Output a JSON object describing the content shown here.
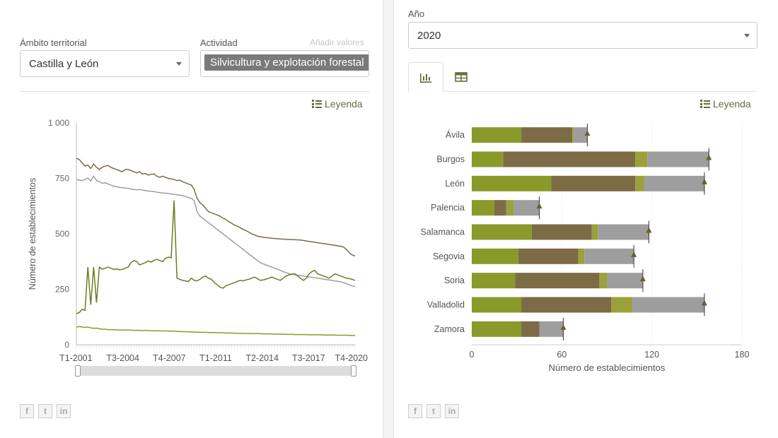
{
  "filters": {
    "territory_label": "Ámbito territorial",
    "territory_value": "Castilla y León",
    "activity_label": "Actividad",
    "add_values_label": "Añadir valores",
    "activity_tag": "Silvicultura y explotación forestal",
    "year_label": "Año",
    "year_value": "2020"
  },
  "legend_label": "Leyenda",
  "tabs": [
    {
      "icon": "bar-chart-icon",
      "active": true
    },
    {
      "icon": "table-icon",
      "active": false
    }
  ],
  "social": [
    "facebook-icon",
    "twitter-icon",
    "linkedin-icon"
  ],
  "colors": {
    "accent": "#6b6b3c",
    "series_1": "#8a9a2a",
    "series_2": "#7d6b46",
    "series_3": "#9aa13a",
    "series_4": "#9e9e9e",
    "total": "#6b5d2e"
  },
  "chart_data": [
    {
      "type": "line",
      "ylabel": "Número de establecimientos",
      "ylim": [
        0,
        1000
      ],
      "yticks": [
        "0",
        "250",
        "500",
        "750",
        "1 000"
      ],
      "xtick_labels": [
        "T1-2001",
        "T3-2004",
        "T4-2007",
        "T1-2011",
        "T2-2014",
        "T3-2017",
        "T4-2020"
      ],
      "grid": false,
      "series": [
        {
          "color": "#7d6b46",
          "values": [
            840,
            835,
            820,
            805,
            810,
            795,
            815,
            800,
            790,
            800,
            805,
            808,
            800,
            795,
            790,
            785,
            780,
            790,
            790,
            785,
            780,
            775,
            780,
            770,
            772,
            765,
            768,
            770,
            760,
            755,
            760,
            755,
            750,
            748,
            745,
            740,
            742,
            735,
            730,
            725,
            720,
            700,
            660,
            640,
            630,
            615,
            600,
            595,
            590,
            585,
            580,
            570,
            565,
            555,
            548,
            540,
            535,
            528,
            520,
            515,
            508,
            500,
            495,
            490,
            487,
            485,
            483,
            482,
            480,
            479,
            478,
            477,
            476,
            475,
            475,
            474,
            474,
            473,
            472,
            470,
            468,
            466,
            464,
            462,
            460,
            458,
            456,
            454,
            452,
            450,
            448,
            446,
            444,
            440,
            430,
            415,
            405,
            400
          ]
        },
        {
          "color": "#9e9e9e",
          "values": [
            745,
            742,
            740,
            745,
            752,
            738,
            760,
            740,
            735,
            728,
            730,
            725,
            720,
            715,
            712,
            710,
            708,
            706,
            705,
            702,
            700,
            698,
            700,
            697,
            695,
            693,
            692,
            690,
            688,
            686,
            684,
            683,
            682,
            680,
            678,
            676,
            674,
            672,
            668,
            664,
            660,
            650,
            600,
            580,
            570,
            560,
            550,
            540,
            530,
            520,
            510,
            500,
            490,
            480,
            470,
            460,
            450,
            440,
            430,
            420,
            410,
            400,
            390,
            380,
            370,
            365,
            360,
            355,
            350,
            345,
            340,
            335,
            330,
            325,
            320,
            318,
            316,
            314,
            312,
            310,
            308,
            306,
            304,
            302,
            300,
            298,
            296,
            294,
            292,
            290,
            288,
            286,
            284,
            280,
            275,
            270,
            265,
            262
          ]
        },
        {
          "color": "#6e7a22",
          "values": [
            140,
            145,
            160,
            155,
            350,
            180,
            350,
            190,
            350,
            340,
            345,
            350,
            345,
            340,
            342,
            338,
            340,
            345,
            350,
            370,
            380,
            375,
            360,
            365,
            370,
            378,
            372,
            380,
            385,
            380,
            375,
            390,
            395,
            392,
            650,
            300,
            295,
            290,
            288,
            285,
            300,
            290,
            288,
            295,
            305,
            310,
            300,
            295,
            280,
            270,
            260,
            255,
            265,
            270,
            275,
            280,
            285,
            290,
            288,
            292,
            295,
            300,
            305,
            298,
            290,
            292,
            296,
            300,
            305,
            300,
            295,
            290,
            300,
            310,
            315,
            318,
            320,
            310,
            300,
            290,
            300,
            320,
            330,
            335,
            320,
            315,
            310,
            305,
            300,
            310,
            320,
            315,
            310,
            305,
            300,
            298,
            295,
            290
          ]
        },
        {
          "color": "#8a9a2a",
          "values": [
            80,
            82,
            80,
            78,
            80,
            76,
            74,
            75,
            72,
            70,
            70,
            68,
            68,
            68,
            67,
            67,
            67,
            66,
            66,
            66,
            65,
            65,
            65,
            64,
            64,
            64,
            63,
            63,
            63,
            63,
            62,
            62,
            62,
            61,
            61,
            60,
            60,
            59,
            59,
            58,
            58,
            57,
            57,
            56,
            56,
            56,
            55,
            55,
            55,
            54,
            54,
            54,
            53,
            53,
            53,
            52,
            52,
            52,
            51,
            51,
            51,
            50,
            50,
            50,
            50,
            49,
            49,
            49,
            48,
            48,
            48,
            48,
            47,
            47,
            47,
            47,
            46,
            46,
            46,
            46,
            46,
            45,
            45,
            45,
            45,
            45,
            44,
            44,
            44,
            44,
            44,
            43,
            43,
            43,
            43,
            42,
            42,
            42
          ]
        }
      ]
    },
    {
      "type": "bar",
      "orientation": "horizontal",
      "stacked": true,
      "xlabel": "Número de establecimientos",
      "xlim": [
        0,
        180
      ],
      "xticks": [
        "0",
        "60",
        "120",
        "180"
      ],
      "categories": [
        "Ávila",
        "Burgos",
        "León",
        "Palencia",
        "Salamanca",
        "Segovia",
        "Soria",
        "Valladolid",
        "Zamora"
      ],
      "series": [
        {
          "color": "#8a9a2a",
          "values": [
            33,
            21,
            53,
            15,
            40,
            31,
            29,
            33,
            33
          ]
        },
        {
          "color": "#7d6b46",
          "values": [
            34,
            88,
            56,
            8,
            40,
            40,
            56,
            60,
            12
          ]
        },
        {
          "color": "#9aa13a",
          "values": [
            1,
            8,
            6,
            5,
            4,
            4,
            5,
            14,
            0
          ]
        },
        {
          "color": "#9e9e9e",
          "values": [
            9,
            41,
            40,
            17,
            34,
            33,
            24,
            48,
            16
          ]
        }
      ],
      "totals": [
        77,
        158,
        155,
        45,
        118,
        108,
        114,
        155,
        61
      ]
    }
  ]
}
